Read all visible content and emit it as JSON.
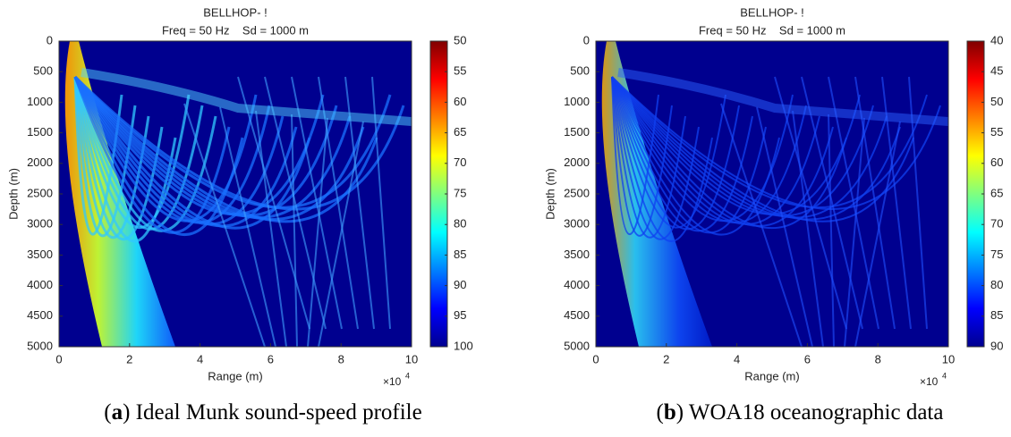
{
  "chart_data": [
    {
      "type": "heatmap",
      "title": "BELLHOP- !",
      "subtitle": "Freq = 50 Hz    Sd = 1000 m",
      "x_label": "Range (m)",
      "y_label": "Depth (m)",
      "x_exponent": "×10",
      "x_exponent_power": "4",
      "xlim": [
        0,
        100000
      ],
      "xticks": [
        0,
        {
          "value": 20000,
          "label": "2"
        },
        {
          "value": 40000,
          "label": "4"
        },
        {
          "value": 60000,
          "label": "6"
        },
        {
          "value": 80000,
          "label": "8"
        },
        {
          "value": 100000,
          "label": "10"
        }
      ],
      "ylim": [
        5000,
        0
      ],
      "yticks": [
        0,
        500,
        1000,
        1500,
        2000,
        2500,
        3000,
        3500,
        4000,
        4500,
        5000
      ],
      "colormap": "jet",
      "clim": [
        100,
        50
      ],
      "cticks": [
        50,
        55,
        60,
        65,
        70,
        75,
        80,
        85,
        90,
        95,
        100
      ],
      "caption": [
        "(",
        "a",
        ") Ideal Munk sound-speed profile"
      ]
    },
    {
      "type": "heatmap",
      "title": "BELLHOP- !",
      "subtitle": "Freq = 50 Hz    Sd = 1000 m",
      "x_label": "Range (m)",
      "y_label": "Depth (m)",
      "x_exponent": "×10",
      "x_exponent_power": "4",
      "xlim": [
        0,
        100000
      ],
      "xticks": [
        0,
        {
          "value": 20000,
          "label": "2"
        },
        {
          "value": 40000,
          "label": "4"
        },
        {
          "value": 60000,
          "label": "6"
        },
        {
          "value": 80000,
          "label": "8"
        },
        {
          "value": 100000,
          "label": "10"
        }
      ],
      "ylim": [
        5000,
        0
      ],
      "yticks": [
        0,
        500,
        1000,
        1500,
        2000,
        2500,
        3000,
        3500,
        4000,
        4500,
        5000
      ],
      "colormap": "jet",
      "clim": [
        90,
        40
      ],
      "cticks": [
        40,
        45,
        50,
        55,
        60,
        65,
        70,
        75,
        80,
        85,
        90
      ],
      "caption": [
        "(",
        "b",
        ") WOA18 oceanographic data"
      ]
    }
  ]
}
